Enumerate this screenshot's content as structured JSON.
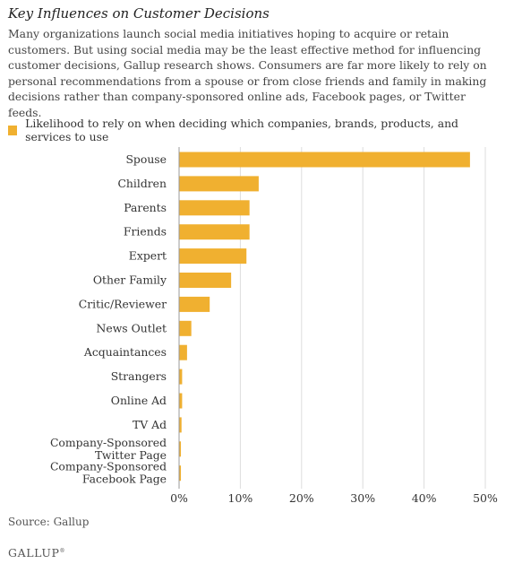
{
  "header": {
    "title": "Key Influences on Customer Decisions",
    "description": "Many organizations launch social media initiatives hoping to acquire or retain customers. But using social media may be the least effective method for influencing customer decisions, Gallup research shows. Consumers are far more likely to rely on personal recommendations from a spouse or from close friends and family in making decisions rather than company-sponsored online ads, Facebook pages, or Twitter feeds."
  },
  "footer": {
    "source": "Source: Gallup",
    "logo": "GALLUP"
  },
  "colors": {
    "bar": "#f0b030",
    "grid": "#dddddd",
    "axis": "#999999",
    "text": "#333333"
  },
  "chart_data": {
    "type": "bar",
    "orientation": "horizontal",
    "categories": [
      "Spouse",
      "Children",
      "Parents",
      "Friends",
      "Expert",
      "Other Family",
      "Critic/Reviewer",
      "News Outlet",
      "Acquaintances",
      "Strangers",
      "Online Ad",
      "TV Ad",
      "Company-Sponsored Twitter Page",
      "Company-Sponsored Facebook Page"
    ],
    "category_lines": [
      [
        "Spouse"
      ],
      [
        "Children"
      ],
      [
        "Parents"
      ],
      [
        "Friends"
      ],
      [
        "Expert"
      ],
      [
        "Other Family"
      ],
      [
        "Critic/Reviewer"
      ],
      [
        "News Outlet"
      ],
      [
        "Acquaintances"
      ],
      [
        "Strangers"
      ],
      [
        "Online Ad"
      ],
      [
        "TV Ad"
      ],
      [
        "Company-Sponsored",
        "Twitter Page"
      ],
      [
        "Company-Sponsored",
        "Facebook Page"
      ]
    ],
    "series": [
      {
        "name": "Likelihood to rely on when deciding which companies, brands, products, and services to use",
        "values": [
          47.5,
          13,
          11.5,
          11.5,
          11,
          8.5,
          5,
          2,
          1.3,
          0.5,
          0.5,
          0.4,
          0.3,
          0.3
        ]
      }
    ],
    "xlim": [
      0,
      50
    ],
    "x_ticks": [
      0,
      10,
      20,
      30,
      40,
      50
    ],
    "x_tick_labels": [
      "0%",
      "10%",
      "20%",
      "30%",
      "40%",
      "50%"
    ],
    "grid": true,
    "legend_position": "top-left"
  }
}
